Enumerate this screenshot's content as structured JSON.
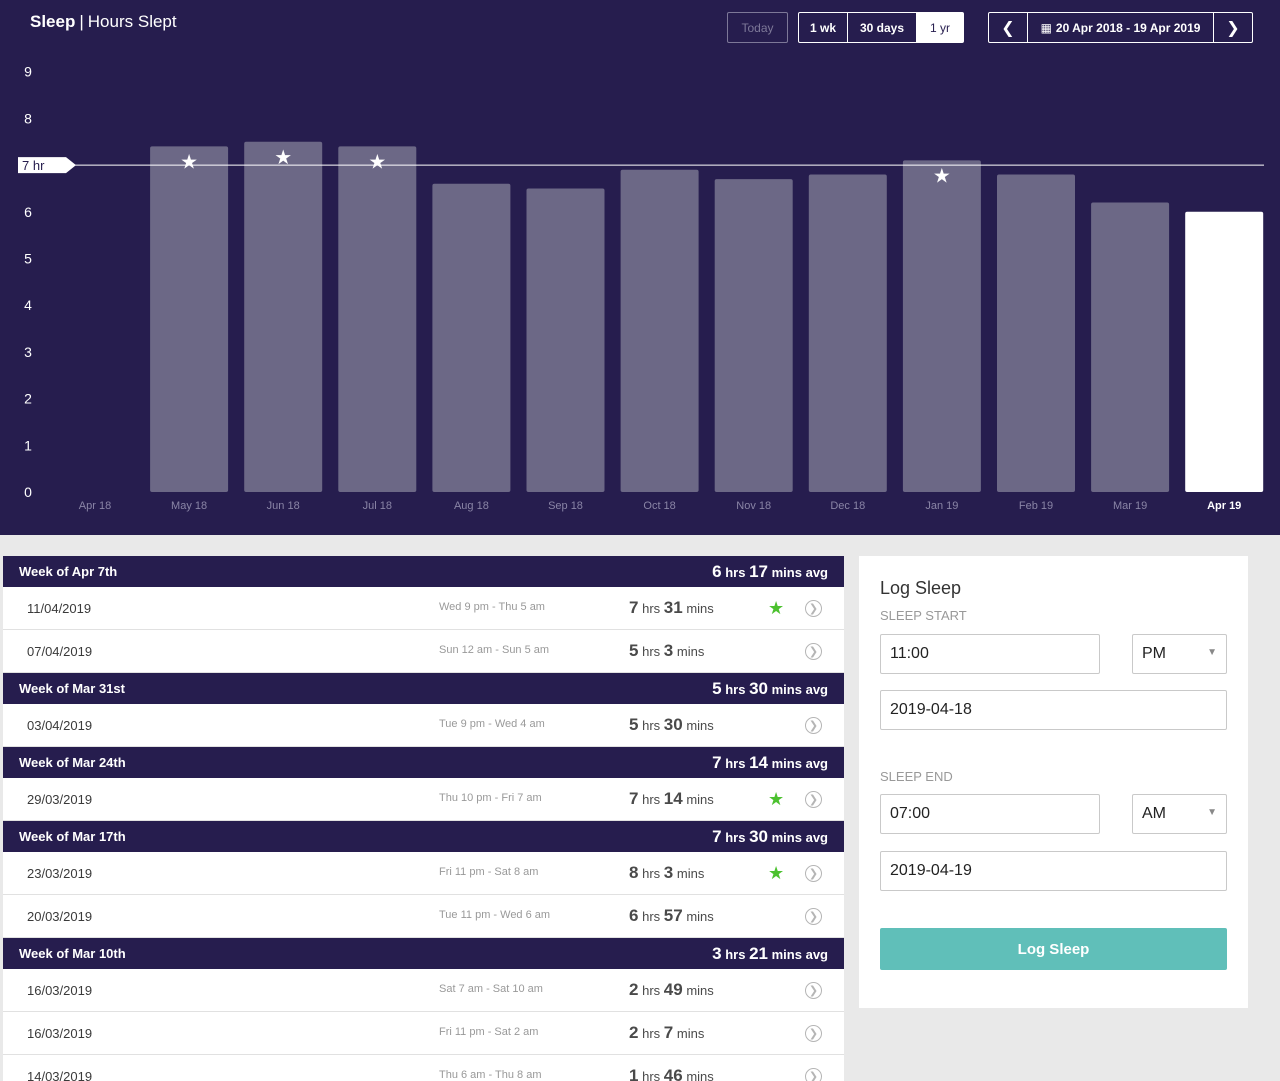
{
  "header": {
    "title": "Sleep",
    "separator": "|",
    "subtitle": "Hours Slept",
    "today_label": "Today",
    "ranges": [
      "1 wk",
      "30 days",
      "1 yr"
    ],
    "date_range": "20 Apr 2018 - 19 Apr 2019",
    "prev_icon": "chevron-left-icon",
    "next_icon": "chevron-right-icon",
    "calendar_icon": "calendar-icon"
  },
  "chart_data": {
    "type": "bar",
    "categories": [
      "Apr 18",
      "May 18",
      "Jun 18",
      "Jul 18",
      "Aug 18",
      "Sep 18",
      "Oct 18",
      "Nov 18",
      "Dec 18",
      "Jan 19",
      "Feb 19",
      "Mar 19",
      "Apr 19"
    ],
    "values": [
      0,
      7.4,
      7.5,
      7.4,
      6.6,
      6.5,
      6.9,
      6.7,
      6.8,
      7.1,
      6.8,
      6.2,
      6.0
    ],
    "starred": [
      false,
      true,
      true,
      true,
      false,
      false,
      false,
      false,
      false,
      true,
      false,
      false,
      false
    ],
    "highlighted_category": "Apr 19",
    "ylim": [
      0,
      9
    ],
    "yticks": [
      0,
      1,
      2,
      3,
      4,
      5,
      6,
      7,
      8,
      9
    ],
    "goal_line": {
      "value": 7,
      "label": "7 hr"
    },
    "colors": {
      "background": "#261d4e",
      "bar": "#6c6886",
      "bar_highlight": "#ffffff"
    }
  },
  "weeks": [
    {
      "label": "Week of Apr 7th",
      "avg_hrs": "6",
      "avg_mins": "17",
      "entries": [
        {
          "date": "11/04/2019",
          "span": "Wed 9 pm - Thu 5 am",
          "hrs": "7",
          "mins": "31",
          "star": true
        },
        {
          "date": "07/04/2019",
          "span": "Sun 12 am - Sun 5 am",
          "hrs": "5",
          "mins": "3",
          "star": false
        }
      ]
    },
    {
      "label": "Week of Mar 31st",
      "avg_hrs": "5",
      "avg_mins": "30",
      "entries": [
        {
          "date": "03/04/2019",
          "span": "Tue 9 pm - Wed 4 am",
          "hrs": "5",
          "mins": "30",
          "star": false
        }
      ]
    },
    {
      "label": "Week of Mar 24th",
      "avg_hrs": "7",
      "avg_mins": "14",
      "entries": [
        {
          "date": "29/03/2019",
          "span": "Thu 10 pm - Fri 7 am",
          "hrs": "7",
          "mins": "14",
          "star": true
        }
      ]
    },
    {
      "label": "Week of Mar 17th",
      "avg_hrs": "7",
      "avg_mins": "30",
      "entries": [
        {
          "date": "23/03/2019",
          "span": "Fri 11 pm - Sat 8 am",
          "hrs": "8",
          "mins": "3",
          "star": true
        },
        {
          "date": "20/03/2019",
          "span": "Tue 11 pm - Wed 6 am",
          "hrs": "6",
          "mins": "57",
          "star": false
        }
      ]
    },
    {
      "label": "Week of Mar 10th",
      "avg_hrs": "3",
      "avg_mins": "21",
      "entries": [
        {
          "date": "16/03/2019",
          "span": "Sat 7 am - Sat 10 am",
          "hrs": "2",
          "mins": "49",
          "star": false
        },
        {
          "date": "16/03/2019",
          "span": "Fri 11 pm - Sat 2 am",
          "hrs": "2",
          "mins": "7",
          "star": false
        },
        {
          "date": "14/03/2019",
          "span": "Thu 6 am - Thu 8 am",
          "hrs": "1",
          "mins": "46",
          "star": false
        }
      ]
    }
  ],
  "units": {
    "hrs": "hrs",
    "mins": "mins",
    "avg": "avg"
  },
  "log": {
    "title": "Log Sleep",
    "start_label": "SLEEP START",
    "start_time": "11:00",
    "start_ampm": "PM",
    "start_date": "2019-04-18",
    "end_label": "SLEEP END",
    "end_time": "07:00",
    "end_ampm": "AM",
    "end_date": "2019-04-19",
    "button": "Log Sleep"
  }
}
